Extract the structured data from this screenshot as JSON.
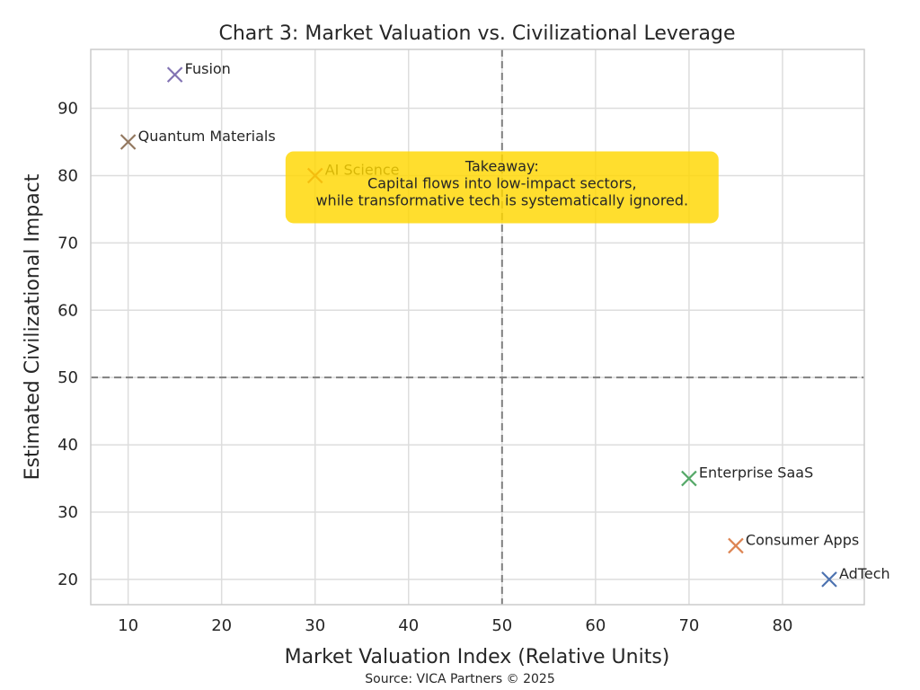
{
  "chart_data": {
    "type": "scatter",
    "title": "Chart 3: Market Valuation vs. Civilizational Leverage",
    "xlabel": "Market Valuation Index (Relative Units)",
    "ylabel": "Estimated Civilizational Impact",
    "xlim": [
      6,
      88.75
    ],
    "ylim": [
      16.25,
      98.75
    ],
    "xticks": [
      10,
      20,
      30,
      40,
      50,
      60,
      70,
      80
    ],
    "yticks": [
      20,
      30,
      40,
      50,
      60,
      70,
      80,
      90
    ],
    "grid": true,
    "marker": "x",
    "reference_lines": {
      "x": 50,
      "y": 50,
      "style": "dashed"
    },
    "points": [
      {
        "label": "AdTech",
        "x": 85,
        "y": 20,
        "color": "#4c72b0"
      },
      {
        "label": "Consumer Apps",
        "x": 75,
        "y": 25,
        "color": "#dd8452"
      },
      {
        "label": "Enterprise SaaS",
        "x": 70,
        "y": 35,
        "color": "#55a868"
      },
      {
        "label": "AI Science",
        "x": 30,
        "y": 80,
        "color": "#c44e52"
      },
      {
        "label": "Fusion",
        "x": 15,
        "y": 95,
        "color": "#8172b3"
      },
      {
        "label": "Quantum Materials",
        "x": 10,
        "y": 85,
        "color": "#937860"
      }
    ],
    "callout": {
      "lines": [
        "Takeaway:",
        "Capital flows into low-impact sectors,",
        "while transformative tech is systematically ignored."
      ],
      "x": 50,
      "y": 80,
      "color": "#ffd700"
    },
    "source": "Source: VICA Partners © 2025"
  }
}
